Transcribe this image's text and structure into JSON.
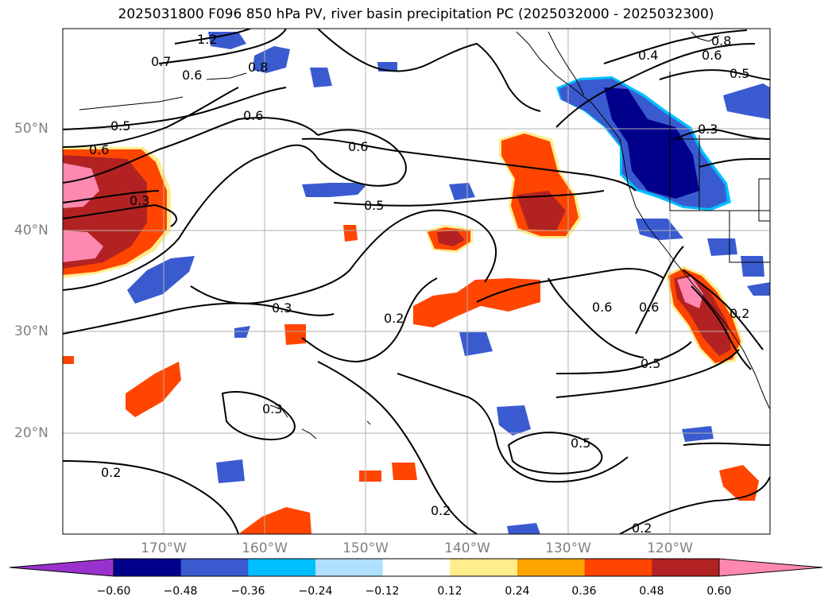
{
  "title": "2025031800 F096 850 hPa PV, river basin precipitation PC (2025032000 - 2025032300)",
  "lat_labels": [
    "50°N",
    "40°N",
    "30°N",
    "20°N"
  ],
  "lon_labels": [
    "170°W",
    "160°W",
    "150°W",
    "140°W",
    "130°W",
    "120°W"
  ],
  "colorbar": {
    "ticks": [
      "−0.60",
      "−0.48",
      "−0.36",
      "−0.24",
      "−0.12",
      "0.12",
      "0.24",
      "0.36",
      "0.48",
      "0.60"
    ],
    "colors": [
      "#9932cc",
      "#00008b",
      "#3a5bd0",
      "#00bfff",
      "#b0e0ff",
      "#ffffff",
      "#ffec8b",
      "#ffa500",
      "#ff4500",
      "#b22222",
      "#ff88b0"
    ]
  },
  "colors": {
    "pink": "#ff88b0",
    "darkred": "#b22222",
    "orangered": "#ff4500",
    "orange": "#ffa500",
    "yellow": "#ffec8b",
    "navy": "#00008b",
    "blue": "#3a5bd0",
    "deepsky": "#00bfff",
    "lightblue": "#b0e0ff"
  },
  "contour_labels": [
    "1.2",
    "0.7",
    "0.6",
    "0.8",
    "0.6",
    "0.5",
    "0.6",
    "0.6",
    "0.3",
    "0.5",
    "0.3",
    "0.2",
    "0.6",
    "0.6",
    "0.5",
    "0.3",
    "0.2",
    "0.5",
    "0.2",
    "0.2",
    "0.8",
    "0.6",
    "0.4",
    "0.5",
    "0.3",
    "0.2"
  ]
}
